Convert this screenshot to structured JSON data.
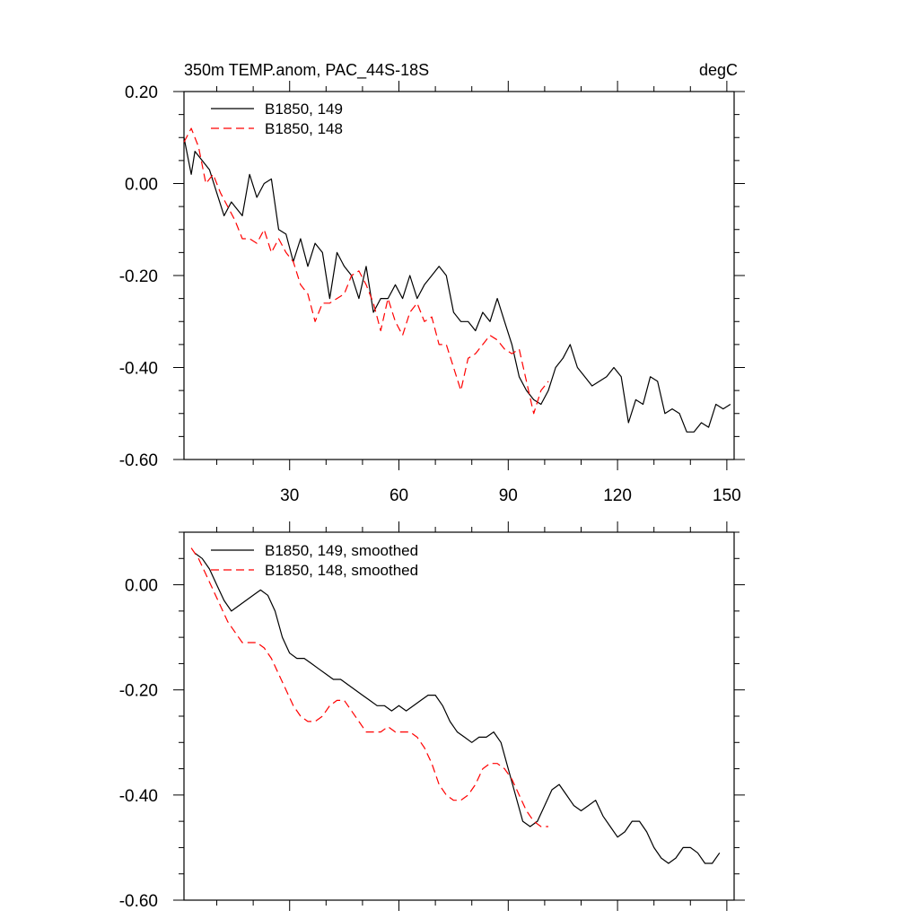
{
  "chart_data": [
    {
      "type": "line",
      "title": "350m TEMP.anom, PAC_44S-18S",
      "units": "degC",
      "xlim": [
        1,
        152
      ],
      "ylim": [
        -0.6,
        0.2
      ],
      "xticks": [
        30,
        60,
        90,
        120,
        150
      ],
      "xtick_labels": [
        "30",
        "60",
        "90",
        "120",
        "150"
      ],
      "yticks": [
        0.2,
        0.0,
        -0.2,
        -0.4,
        -0.6
      ],
      "ytick_labels": [
        "0.20",
        "0.00",
        "-0.20",
        "-0.40",
        "-0.60"
      ],
      "legend_location": "top-left",
      "series": [
        {
          "name": "B1850, 149",
          "color": "#000000",
          "dash": "solid",
          "x": [
            1,
            3,
            4,
            6,
            8,
            10,
            12,
            14,
            15,
            17,
            19,
            21,
            23,
            25,
            27,
            29,
            31,
            33,
            35,
            37,
            39,
            41,
            43,
            45,
            47,
            49,
            51,
            53,
            55,
            57,
            59,
            61,
            63,
            65,
            67,
            69,
            71,
            73,
            75,
            77,
            79,
            81,
            83,
            85,
            87,
            89,
            91,
            93,
            95,
            97,
            99,
            101,
            103,
            105,
            107,
            109,
            111,
            113,
            115,
            117,
            119,
            121,
            123,
            125,
            127,
            129,
            131,
            133,
            135,
            137,
            139,
            141,
            143,
            145,
            147,
            149,
            151
          ],
          "values": [
            0.1,
            0.02,
            0.07,
            0.05,
            0.03,
            -0.02,
            -0.07,
            -0.04,
            -0.05,
            -0.07,
            0.02,
            -0.03,
            0.0,
            0.01,
            -0.1,
            -0.11,
            -0.17,
            -0.12,
            -0.18,
            -0.13,
            -0.15,
            -0.25,
            -0.15,
            -0.18,
            -0.2,
            -0.25,
            -0.18,
            -0.28,
            -0.25,
            -0.25,
            -0.22,
            -0.25,
            -0.2,
            -0.25,
            -0.22,
            -0.2,
            -0.18,
            -0.2,
            -0.28,
            -0.3,
            -0.3,
            -0.32,
            -0.28,
            -0.3,
            -0.25,
            -0.3,
            -0.35,
            -0.42,
            -0.45,
            -0.47,
            -0.48,
            -0.45,
            -0.4,
            -0.38,
            -0.35,
            -0.4,
            -0.42,
            -0.44,
            -0.43,
            -0.42,
            -0.4,
            -0.42,
            -0.52,
            -0.47,
            -0.48,
            -0.42,
            -0.43,
            -0.5,
            -0.49,
            -0.5,
            -0.54,
            -0.54,
            -0.52,
            -0.53,
            -0.48,
            -0.49,
            -0.48
          ]
        },
        {
          "name": "B1850, 148",
          "color": "#ff0000",
          "dash": "dashed",
          "x": [
            1,
            3,
            5,
            7,
            9,
            11,
            13,
            15,
            17,
            19,
            21,
            23,
            25,
            27,
            29,
            31,
            33,
            35,
            37,
            39,
            41,
            43,
            45,
            47,
            49,
            51,
            53,
            55,
            57,
            59,
            61,
            63,
            65,
            67,
            69,
            71,
            73,
            75,
            77,
            79,
            81,
            83,
            85,
            87,
            89,
            91,
            93,
            95,
            97,
            99,
            101
          ],
          "values": [
            0.09,
            0.12,
            0.08,
            0.0,
            0.02,
            -0.02,
            -0.05,
            -0.08,
            -0.12,
            -0.12,
            -0.13,
            -0.1,
            -0.15,
            -0.12,
            -0.15,
            -0.17,
            -0.22,
            -0.24,
            -0.3,
            -0.26,
            -0.26,
            -0.25,
            -0.24,
            -0.2,
            -0.19,
            -0.22,
            -0.26,
            -0.32,
            -0.25,
            -0.3,
            -0.33,
            -0.28,
            -0.26,
            -0.3,
            -0.29,
            -0.35,
            -0.35,
            -0.4,
            -0.45,
            -0.38,
            -0.37,
            -0.35,
            -0.33,
            -0.34,
            -0.36,
            -0.37,
            -0.36,
            -0.43,
            -0.5,
            -0.45,
            -0.43
          ]
        }
      ]
    },
    {
      "type": "line",
      "xlim": [
        1,
        152
      ],
      "ylim": [
        -0.6,
        0.1
      ],
      "xticks": [
        30,
        60,
        90,
        120,
        150
      ],
      "yticks": [
        0.0,
        -0.2,
        -0.4,
        -0.6
      ],
      "ytick_labels": [
        "0.00",
        "-0.20",
        "-0.40",
        "-0.60"
      ],
      "legend_location": "top-left",
      "series": [
        {
          "name": "B1850, 149, smoothed",
          "color": "#000000",
          "dash": "solid",
          "x": [
            4,
            6,
            8,
            10,
            12,
            14,
            16,
            18,
            20,
            22,
            24,
            26,
            28,
            30,
            32,
            34,
            36,
            38,
            40,
            42,
            44,
            46,
            48,
            50,
            52,
            54,
            56,
            58,
            60,
            62,
            64,
            66,
            68,
            70,
            72,
            74,
            76,
            78,
            80,
            82,
            84,
            86,
            88,
            90,
            92,
            94,
            96,
            98,
            100,
            102,
            104,
            106,
            108,
            110,
            112,
            114,
            116,
            118,
            120,
            122,
            124,
            126,
            128,
            130,
            132,
            134,
            136,
            138,
            140,
            142,
            144,
            146,
            148
          ],
          "values": [
            0.06,
            0.05,
            0.03,
            0.0,
            -0.03,
            -0.05,
            -0.04,
            -0.03,
            -0.02,
            -0.01,
            -0.02,
            -0.05,
            -0.1,
            -0.13,
            -0.14,
            -0.14,
            -0.15,
            -0.16,
            -0.17,
            -0.18,
            -0.18,
            -0.19,
            -0.2,
            -0.21,
            -0.22,
            -0.23,
            -0.23,
            -0.24,
            -0.23,
            -0.24,
            -0.23,
            -0.22,
            -0.21,
            -0.21,
            -0.23,
            -0.26,
            -0.28,
            -0.29,
            -0.3,
            -0.29,
            -0.29,
            -0.28,
            -0.3,
            -0.35,
            -0.4,
            -0.45,
            -0.46,
            -0.45,
            -0.42,
            -0.39,
            -0.38,
            -0.4,
            -0.42,
            -0.43,
            -0.42,
            -0.41,
            -0.44,
            -0.46,
            -0.48,
            -0.47,
            -0.45,
            -0.45,
            -0.47,
            -0.5,
            -0.52,
            -0.53,
            -0.52,
            -0.5,
            -0.5,
            -0.51,
            -0.53,
            -0.53,
            -0.51
          ]
        },
        {
          "name": "B1850, 148, smoothed",
          "color": "#ff0000",
          "dash": "dashed",
          "x": [
            3,
            5,
            7,
            9,
            11,
            13,
            15,
            17,
            19,
            21,
            23,
            25,
            27,
            29,
            31,
            33,
            35,
            37,
            39,
            41,
            43,
            45,
            47,
            49,
            51,
            53,
            55,
            57,
            59,
            61,
            63,
            65,
            67,
            69,
            71,
            73,
            75,
            77,
            79,
            81,
            83,
            85,
            87,
            89,
            91,
            93,
            95,
            97,
            99,
            101
          ],
          "values": [
            0.07,
            0.05,
            0.02,
            -0.01,
            -0.04,
            -0.07,
            -0.09,
            -0.11,
            -0.11,
            -0.11,
            -0.12,
            -0.14,
            -0.17,
            -0.2,
            -0.23,
            -0.25,
            -0.26,
            -0.26,
            -0.25,
            -0.23,
            -0.22,
            -0.22,
            -0.24,
            -0.26,
            -0.28,
            -0.28,
            -0.28,
            -0.27,
            -0.28,
            -0.28,
            -0.28,
            -0.29,
            -0.31,
            -0.34,
            -0.38,
            -0.4,
            -0.41,
            -0.41,
            -0.4,
            -0.38,
            -0.35,
            -0.34,
            -0.34,
            -0.35,
            -0.37,
            -0.4,
            -0.43,
            -0.45,
            -0.46,
            -0.46
          ]
        }
      ]
    }
  ]
}
